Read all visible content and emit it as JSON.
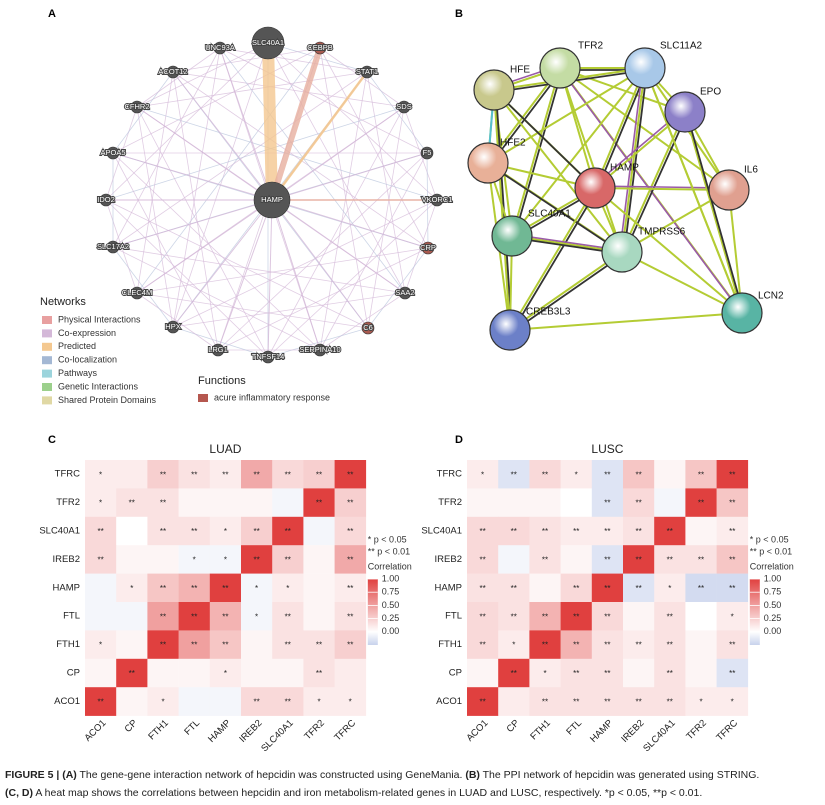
{
  "panels": {
    "a": "A",
    "b": "B",
    "c": "C",
    "d": "D"
  },
  "network_a": {
    "nodes": [
      {
        "label": "HAMP",
        "color": "#555555"
      },
      {
        "label": "SLC40A1",
        "color": "#555555"
      },
      {
        "label": "CEBPB",
        "color": "#a85a50"
      },
      {
        "label": "STAT1",
        "color": "#555555"
      },
      {
        "label": "SDS",
        "color": "#555555"
      },
      {
        "label": "F5",
        "color": "#555555"
      },
      {
        "label": "VKORC1",
        "color": "#555555"
      },
      {
        "label": "CRP",
        "color": "#a85a50"
      },
      {
        "label": "SAA2",
        "color": "#555555"
      },
      {
        "label": "C6",
        "color": "#a85a50"
      },
      {
        "label": "SERPINA10",
        "color": "#555555"
      },
      {
        "label": "TNFSF14",
        "color": "#555555"
      },
      {
        "label": "LRG1",
        "color": "#555555"
      },
      {
        "label": "HPX",
        "color": "#555555"
      },
      {
        "label": "CLEC4M",
        "color": "#555555"
      },
      {
        "label": "SLC17A2",
        "color": "#555555"
      },
      {
        "label": "IDO2",
        "color": "#555555"
      },
      {
        "label": "APOA5",
        "color": "#555555"
      },
      {
        "label": "CFHR2",
        "color": "#555555"
      },
      {
        "label": "ACOT12",
        "color": "#555555"
      },
      {
        "label": "UNC93A",
        "color": "#555555"
      }
    ],
    "legend_title": "Networks",
    "legend": [
      {
        "name": "Physical Interactions",
        "color": "#e8a0a0"
      },
      {
        "name": "Co-expression",
        "color": "#d4b8d8"
      },
      {
        "name": "Predicted",
        "color": "#f4c890"
      },
      {
        "name": "Co-localization",
        "color": "#a4b8d4"
      },
      {
        "name": "Pathways",
        "color": "#9cd4dc"
      },
      {
        "name": "Genetic Interactions",
        "color": "#9cd08c"
      },
      {
        "name": "Shared Protein Domains",
        "color": "#e0d8a4"
      }
    ],
    "functions_title": "Functions",
    "functions": [
      {
        "name": "acure inflammatory response",
        "color": "#b5574f"
      }
    ]
  },
  "network_b": {
    "nodes": [
      {
        "label": "TFR2",
        "color": "#c4dca4"
      },
      {
        "label": "SLC11A2",
        "color": "#a8c8e8"
      },
      {
        "label": "HFE",
        "color": "#c8c88c"
      },
      {
        "label": "EPO",
        "color": "#8c80c8"
      },
      {
        "label": "HFE2",
        "color": "#e8b098"
      },
      {
        "label": "HAMP",
        "color": "#d86868"
      },
      {
        "label": "IL6",
        "color": "#e0a090"
      },
      {
        "label": "SLC40A1",
        "color": "#70b894"
      },
      {
        "label": "TMPRSS6",
        "color": "#a8d8c0"
      },
      {
        "label": "LCN2",
        "color": "#58b4a4"
      },
      {
        "label": "CREB3L3",
        "color": "#6c80c8"
      }
    ]
  },
  "chart_data": [
    {
      "type": "heatmap",
      "title": "LUAD",
      "highlight": "HAMP",
      "highlight_color": "#d62728",
      "x": [
        "ACO1",
        "CP",
        "FTH1",
        "FTL",
        "HAMP",
        "IREB2",
        "SLC40A1",
        "TFR2",
        "TFRC"
      ],
      "y": [
        "TFRC",
        "TFR2",
        "SLC40A1",
        "IREB2",
        "HAMP",
        "FTL",
        "FTH1",
        "CP",
        "ACO1"
      ],
      "values": [
        [
          0.1,
          0.1,
          0.25,
          0.15,
          0.1,
          0.45,
          0.2,
          0.25,
          1
        ],
        [
          0.1,
          0.15,
          0.15,
          0.05,
          0.05,
          0.05,
          -0.05,
          1,
          0.25
        ],
        [
          0.2,
          0,
          0.15,
          0.15,
          0.1,
          0.25,
          1,
          -0.05,
          0.2
        ],
        [
          0.2,
          0.05,
          0.05,
          -0.05,
          -0.05,
          1,
          0.25,
          0.05,
          0.45
        ],
        [
          -0.05,
          0.1,
          0.3,
          0.4,
          1,
          -0.05,
          0.1,
          0.05,
          0.1
        ],
        [
          -0.05,
          -0.05,
          0.5,
          1,
          0.4,
          -0.05,
          0.15,
          0.05,
          0.15
        ],
        [
          0.1,
          0.05,
          1,
          0.5,
          0.3,
          0.05,
          0.15,
          0.15,
          0.25
        ],
        [
          0.05,
          1,
          0.05,
          0.05,
          0.1,
          0.05,
          0.05,
          0.15,
          0.1
        ],
        [
          1,
          0.05,
          0.1,
          -0.05,
          -0.05,
          0.2,
          0.2,
          0.1,
          0.1
        ]
      ],
      "stars": [
        [
          "*",
          null,
          "**",
          "**",
          "**",
          "**",
          "**",
          "**",
          "**"
        ],
        [
          "*",
          "**",
          "**",
          null,
          null,
          null,
          null,
          "**",
          "**"
        ],
        [
          "**",
          null,
          "**",
          "**",
          "*",
          "**",
          "**",
          null,
          "**"
        ],
        [
          "**",
          null,
          null,
          "*",
          "*",
          "**",
          "**",
          null,
          "**"
        ],
        [
          null,
          "*",
          "**",
          "**",
          "**",
          "*",
          "*",
          null,
          "**"
        ],
        [
          null,
          null,
          "**",
          "**",
          "**",
          "*",
          "**",
          null,
          "**"
        ],
        [
          "*",
          null,
          "**",
          "**",
          "**",
          null,
          "**",
          "**",
          "**"
        ],
        [
          null,
          "**",
          null,
          null,
          "*",
          null,
          null,
          "**",
          null
        ],
        [
          "**",
          null,
          "*",
          null,
          null,
          "**",
          "**",
          "*",
          "*"
        ]
      ],
      "colors": [
        "#c8d2ec",
        "#ffffff",
        "#e0403f"
      ],
      "zlim": [
        -0.25,
        1
      ],
      "colorbar_title": "Correlation",
      "zticks": [
        {
          "value": 0,
          "label": "0.00"
        },
        {
          "value": 0.25,
          "label": "0.25"
        },
        {
          "value": 0.5,
          "label": "0.50"
        },
        {
          "value": 0.75,
          "label": "0.75"
        },
        {
          "value": 1,
          "label": "1.00"
        }
      ],
      "significance": [
        "* p < 0.05",
        "** p < 0.01"
      ]
    },
    {
      "type": "heatmap",
      "title": "LUSC",
      "highlight": "HAMP",
      "highlight_color": "#d62728",
      "x": [
        "ACO1",
        "CP",
        "FTH1",
        "FTL",
        "HAMP",
        "IREB2",
        "SLC40A1",
        "TFR2",
        "TFRC"
      ],
      "y": [
        "TFRC",
        "TFR2",
        "SLC40A1",
        "IREB2",
        "HAMP",
        "FTL",
        "FTH1",
        "CP",
        "ACO1"
      ],
      "values": [
        [
          0.1,
          -0.15,
          0.2,
          0.1,
          -0.15,
          0.3,
          0.05,
          0.3,
          1
        ],
        [
          0.05,
          0.05,
          0.05,
          0,
          -0.15,
          0.2,
          -0.05,
          1,
          0.3
        ],
        [
          0.2,
          0.2,
          0.15,
          0.1,
          0.1,
          0.15,
          1,
          0.05,
          0.1
        ],
        [
          0.2,
          -0.05,
          0.15,
          0.05,
          -0.15,
          1,
          0.15,
          0.15,
          0.3
        ],
        [
          0.15,
          0.15,
          0.05,
          0.2,
          1,
          -0.15,
          0.1,
          -0.2,
          -0.2
        ],
        [
          0.2,
          0.15,
          0.4,
          1,
          0.2,
          0.05,
          0.15,
          0,
          0.1
        ],
        [
          0.2,
          0.1,
          1,
          0.4,
          0.15,
          0.1,
          0.15,
          0.05,
          0.15
        ],
        [
          0.05,
          1,
          0.1,
          0.15,
          0.15,
          0.05,
          0.15,
          0.05,
          -0.15
        ],
        [
          1,
          0.1,
          0.15,
          0.15,
          0.15,
          0.15,
          0.15,
          0.1,
          0.1
        ]
      ],
      "stars": [
        [
          "*",
          "**",
          "**",
          "*",
          "**",
          "**",
          null,
          "**",
          "**"
        ],
        [
          null,
          null,
          null,
          null,
          "**",
          "**",
          null,
          "**",
          "**"
        ],
        [
          "**",
          "**",
          "**",
          "**",
          "**",
          "**",
          "**",
          null,
          "**"
        ],
        [
          "**",
          null,
          "**",
          null,
          "**",
          "**",
          "**",
          "**",
          "**"
        ],
        [
          "**",
          "**",
          null,
          "**",
          "**",
          "**",
          "*",
          "**",
          "**"
        ],
        [
          "**",
          "**",
          "**",
          "**",
          "**",
          null,
          "**",
          null,
          "*"
        ],
        [
          "**",
          "*",
          "**",
          "**",
          "**",
          "**",
          "**",
          null,
          "**"
        ],
        [
          null,
          "**",
          "*",
          "**",
          "**",
          null,
          "**",
          null,
          "**"
        ],
        [
          "**",
          null,
          "**",
          "**",
          "**",
          "**",
          "**",
          "*",
          "*"
        ]
      ],
      "colors": [
        "#c8d2ec",
        "#ffffff",
        "#e0403f"
      ],
      "zlim": [
        -0.25,
        1
      ],
      "colorbar_title": "Correlation",
      "zticks": [
        {
          "value": 0,
          "label": "0.00"
        },
        {
          "value": 0.25,
          "label": "0.25"
        },
        {
          "value": 0.5,
          "label": "0.50"
        },
        {
          "value": 0.75,
          "label": "0.75"
        },
        {
          "value": 1,
          "label": "1.00"
        }
      ],
      "significance": [
        "* p < 0.05",
        "** p < 0.01"
      ]
    }
  ],
  "caption": [
    [
      {
        "text": "FIGURE 5 | ",
        "bold": true
      },
      {
        "text": "(A)",
        "bold": true
      },
      {
        "text": " The gene-gene interaction network of hepcidin was constructed using GeneMania. "
      },
      {
        "text": "(B)",
        "bold": true
      },
      {
        "text": " The PPI network of hepcidin was generated using STRING."
      }
    ],
    [
      {
        "text": "(C, D)",
        "bold": true
      },
      {
        "text": " A heat map shows the correlations between hepcidin and iron metabolism-related genes in LUAD and LUSC, respectively. *p < 0.05, **p < 0.01."
      }
    ]
  ]
}
